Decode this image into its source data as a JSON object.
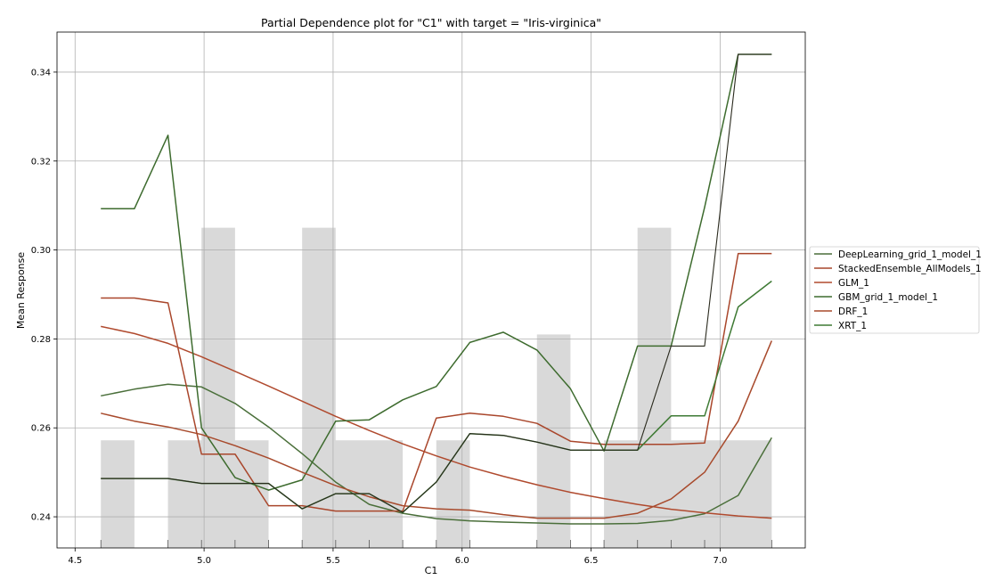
{
  "chart_data": {
    "type": "line",
    "title": "Partial Dependence plot for \"C1\" with target = \"Iris-virginica\"",
    "xlabel": "C1",
    "ylabel": "Mean Response",
    "xlim": [
      4.43,
      7.33
    ],
    "ylim": [
      0.233,
      0.349
    ],
    "xticks": [
      4.5,
      5.0,
      5.5,
      6.0,
      6.5,
      7.0
    ],
    "xtick_labels": [
      "4.5",
      "5.0",
      "5.5",
      "6.0",
      "6.5",
      "7.0"
    ],
    "yticks": [
      0.24,
      0.26,
      0.28,
      0.3,
      0.32,
      0.34
    ],
    "ytick_labels": [
      "0.24",
      "0.26",
      "0.28",
      "0.30",
      "0.32",
      "0.34"
    ],
    "grid": true,
    "legend_position": "outside-right",
    "histogram": {
      "color": "#d9d9d9",
      "bars": [
        {
          "x0": 4.6,
          "x1": 4.73,
          "top": 0.2572
        },
        {
          "x0": 4.86,
          "x1": 5.25,
          "top": 0.2572
        },
        {
          "x0": 4.99,
          "x1": 5.12,
          "top": 0.305
        },
        {
          "x0": 5.38,
          "x1": 5.77,
          "top": 0.2572
        },
        {
          "x0": 5.38,
          "x1": 5.51,
          "top": 0.305
        },
        {
          "x0": 5.9,
          "x1": 6.03,
          "top": 0.2572
        },
        {
          "x0": 6.29,
          "x1": 6.42,
          "top": 0.281
        },
        {
          "x0": 6.55,
          "x1": 7.2,
          "top": 0.2572
        },
        {
          "x0": 6.68,
          "x1": 6.81,
          "top": 0.305
        }
      ]
    },
    "rug_x": [
      4.6,
      4.86,
      4.99,
      5.12,
      5.25,
      5.38,
      5.51,
      5.64,
      5.77,
      5.9,
      6.03,
      6.29,
      6.42,
      6.55,
      6.68,
      6.81,
      6.94,
      7.2
    ],
    "x": [
      4.6,
      4.73,
      4.86,
      4.99,
      5.12,
      5.25,
      5.38,
      5.51,
      5.64,
      5.77,
      5.9,
      6.03,
      6.16,
      6.29,
      6.42,
      6.55,
      6.68,
      6.81,
      6.94,
      7.07,
      7.2
    ],
    "series": [
      {
        "name": "DeepLearning_grid_1_model_1",
        "color": "#4a6f3a",
        "values": [
          0.2672,
          0.2687,
          0.2698,
          0.2692,
          0.2655,
          0.2602,
          0.2542,
          0.2478,
          0.2428,
          0.2408,
          0.2396,
          0.2391,
          0.2388,
          0.2386,
          0.2384,
          0.2384,
          0.2385,
          0.2392,
          0.2407,
          0.2448,
          0.2578
        ]
      },
      {
        "name": "StackedEnsemble_AllModels_1",
        "color": "#a9462b",
        "values": [
          0.2892,
          0.2892,
          0.2881,
          0.2541,
          0.2541,
          0.2425,
          0.2425,
          0.2413,
          0.2413,
          0.2413,
          0.2622,
          0.2633,
          0.2626,
          0.261,
          0.257,
          0.2563,
          0.2563,
          0.2563,
          0.2566,
          0.2992,
          0.2992
        ]
      },
      {
        "name": "GLM_1",
        "color": "#b04a2e",
        "values": [
          0.2828,
          0.2812,
          0.279,
          0.276,
          0.2727,
          0.2694,
          0.266,
          0.2626,
          0.2594,
          0.2564,
          0.2537,
          0.2512,
          0.2491,
          0.2472,
          0.2455,
          0.2441,
          0.2428,
          0.2417,
          0.2409,
          0.2402,
          0.2397
        ]
      },
      {
        "name": "GBM_grid_1_model_1",
        "color": "#3d6b2e",
        "values": [
          0.3093,
          0.3093,
          0.3258,
          0.26,
          0.2488,
          0.246,
          0.2483,
          0.2615,
          0.2618,
          0.2663,
          0.2693,
          0.2792,
          0.2815,
          0.2775,
          0.2688,
          0.2548,
          0.2784,
          0.2784,
          0.3096,
          0.344,
          0.344
        ]
      },
      {
        "name": "DRF_1",
        "color": "#a84a2c",
        "values": [
          0.2633,
          0.2615,
          0.2602,
          0.2585,
          0.256,
          0.2532,
          0.25,
          0.247,
          0.2445,
          0.2425,
          0.2418,
          0.2415,
          0.2405,
          0.2397,
          0.2397,
          0.2397,
          0.2408,
          0.244,
          0.25,
          0.2615,
          0.2796
        ]
      },
      {
        "name": "XRT_1",
        "color": "#3e7a34",
        "values": [
          0.2486,
          0.2486,
          0.2486,
          0.2475,
          0.2475,
          0.2475,
          0.2418,
          0.2452,
          0.2452,
          0.241,
          0.2478,
          0.2587,
          0.2583,
          0.2568,
          0.255,
          0.255,
          0.255,
          0.2627,
          0.2627,
          0.2872,
          0.293
        ]
      }
    ],
    "overlay_line": {
      "color": "#2a2a1e",
      "values": [
        0.2486,
        0.2486,
        0.2486,
        0.2475,
        0.2475,
        0.2475,
        0.2418,
        0.2452,
        0.2452,
        0.241,
        0.2478,
        0.2587,
        0.2583,
        0.2568,
        0.255,
        0.255,
        0.255,
        0.2784,
        0.2784,
        0.344,
        0.344
      ]
    }
  }
}
